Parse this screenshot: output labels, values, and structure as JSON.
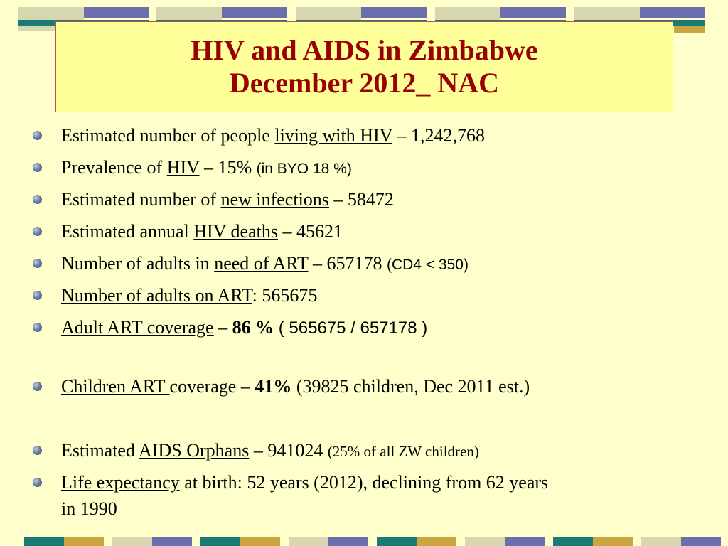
{
  "title": {
    "line1": "HIV and AIDS in Zimbabwe",
    "line2": "December 2012_ NAC"
  },
  "colors": {
    "background": "#FFFFCC",
    "title_box": "#FFFF99",
    "title_text": "#990000",
    "band_teal": "#1A7A75",
    "band_purple": "#6B6FAE",
    "band_gold": "#C9A640",
    "band_light": "#D6D6B0"
  },
  "bullets": [
    {
      "t1": "Estimated number of people ",
      "u1": "living with HIV",
      "t2": " – 1,242,768"
    },
    {
      "t1": "Prevalence of ",
      "u1": "HIV",
      "t2": " – 15% ",
      "s1": "(in BYO 18 %)"
    },
    {
      "t1": "Estimated number of ",
      "u1": "new infections",
      "t2": " – 58472"
    },
    {
      "t1": "Estimated annual ",
      "u1": "HIV deaths",
      "t2": " – 45621"
    },
    {
      "t1": "Number of adults in ",
      "u1": "need of ART",
      "t2": " – 657178 ",
      "s1": "(CD4 < 350)"
    },
    {
      "u1": "Number of adults on ART",
      "t2": ": 565675"
    },
    {
      "u1": "Adult ART coverage",
      "t2": " – ",
      "b1": "86 %",
      "t3": " ( 565675 / 657178 )"
    },
    {
      "u1": "Children ART ",
      "t2": "coverage – ",
      "b1": "41%",
      "t3": " (39825 children, Dec 2011 est.)"
    },
    {
      "t1": "Estimated ",
      "u1": "AIDS Orphans",
      "t2": " – 941024  ",
      "s1": "(25% of all ZW children)"
    },
    {
      "u1": "Life expectancy",
      "t2": " at birth: 52 years (2012), declining from 62 years",
      "t3": "in 1990"
    }
  ]
}
